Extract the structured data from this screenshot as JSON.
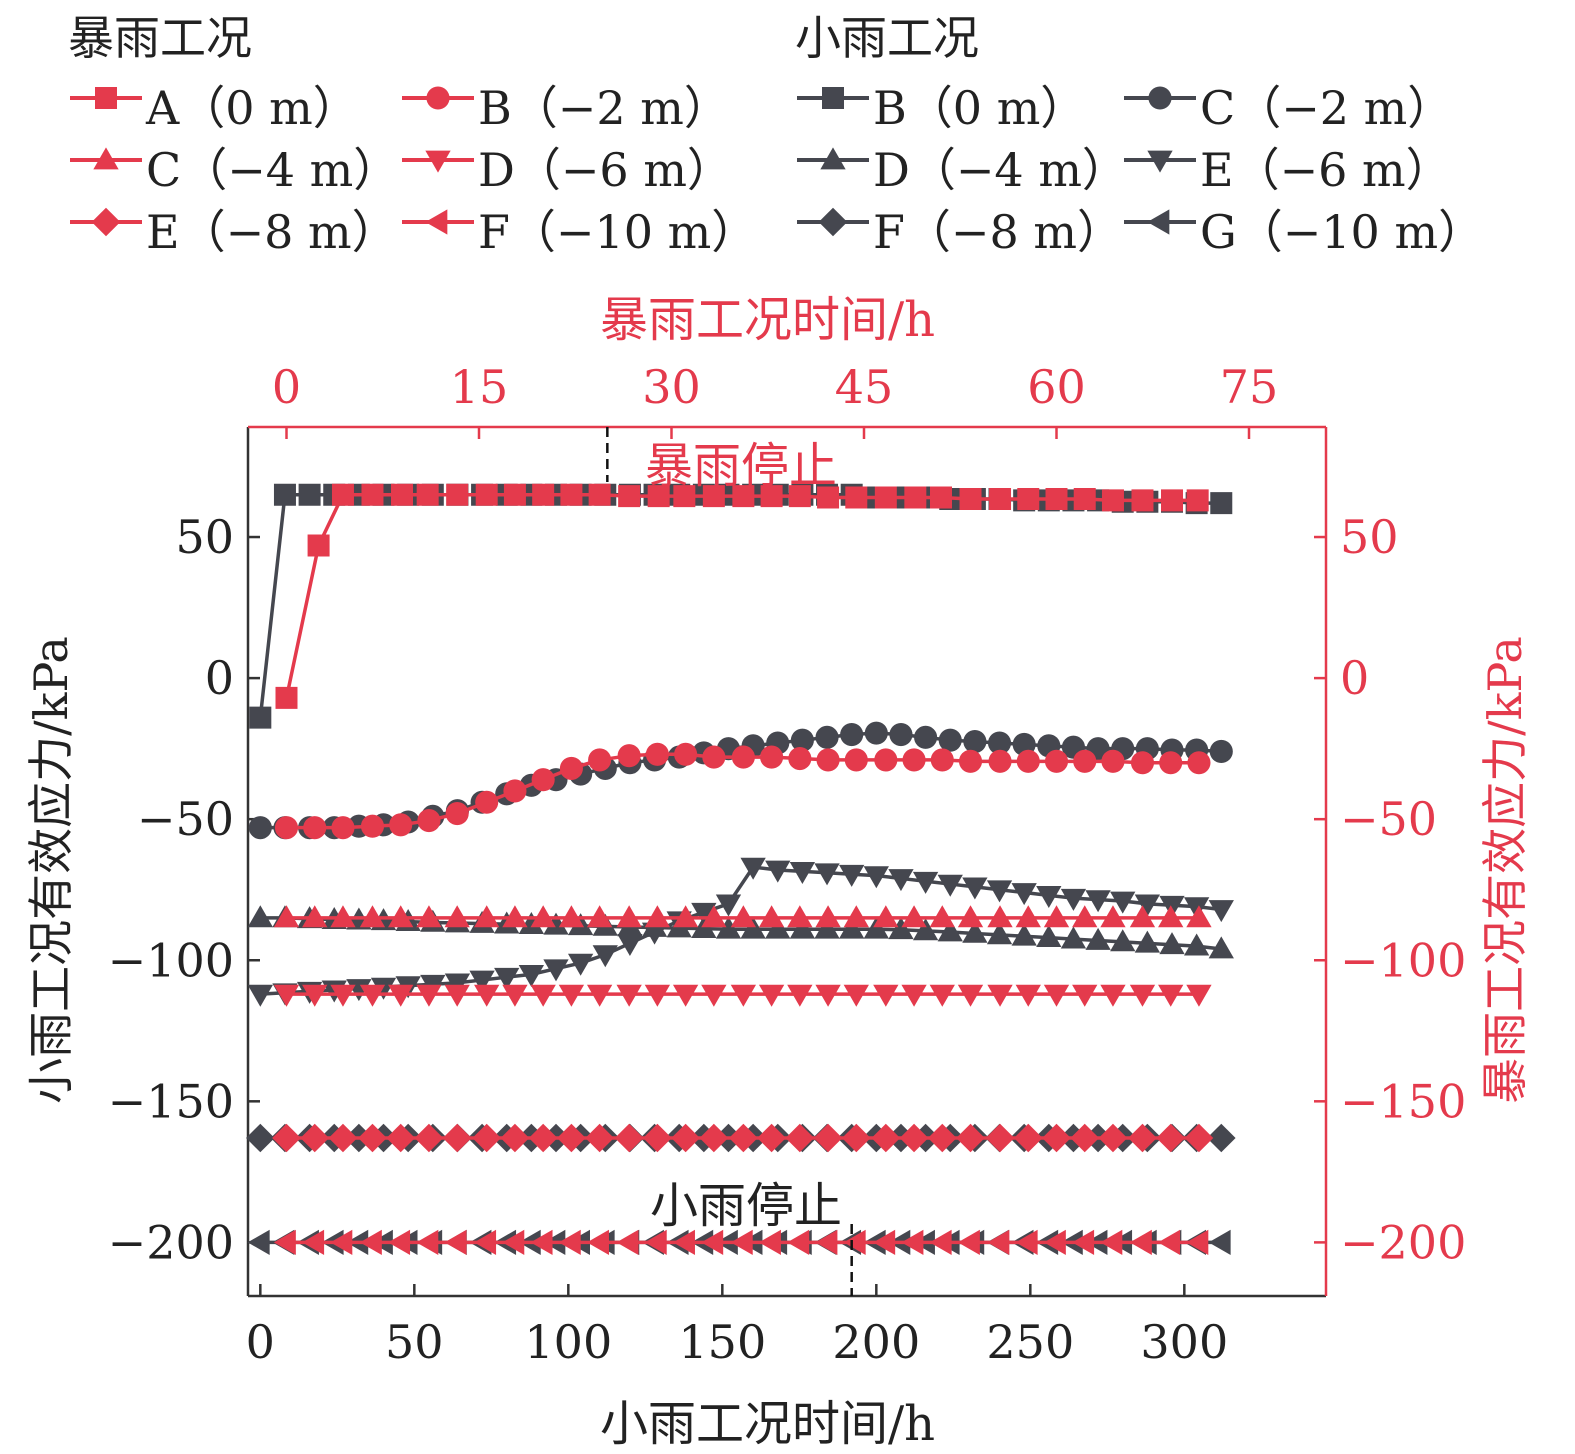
{
  "chart_data": {
    "type": "line",
    "legend": {
      "heavy_title": "暴雨工况",
      "light_title": "小雨工况",
      "heavy_entries": [
        "A（0 m）",
        "B（−2 m）",
        "C（−4 m）",
        "D（−6 m）",
        "E（−8 m）",
        "F（−10 m）"
      ],
      "light_entries": [
        "B（0 m）",
        "C（−2 m）",
        "D（−4 m）",
        "E（−6 m）",
        "F（−8 m）",
        "G（−10 m）"
      ]
    },
    "axes": {
      "x_bottom": {
        "label": "小雨工况时间/h",
        "range": [
          -4,
          346
        ],
        "ticks": [
          0,
          50,
          100,
          150,
          200,
          250,
          300
        ]
      },
      "x_top": {
        "label": "暴雨工况时间/h",
        "range": [
          -3,
          81
        ],
        "ticks": [
          0,
          15,
          30,
          45,
          60,
          75
        ]
      },
      "y_left": {
        "label": "小雨工况有效应力/kPa",
        "range": [
          -219,
          89
        ],
        "ticks": [
          50,
          0,
          -50,
          -100,
          -150,
          -200
        ]
      },
      "y_right": {
        "label": "暴雨工况有效应力/kPa",
        "range": [
          -219,
          89
        ],
        "ticks": [
          50,
          0,
          -50,
          -100,
          -150,
          -200
        ]
      }
    },
    "annotations": [
      {
        "text": "暴雨停止",
        "x_top": 25
      },
      {
        "text": "小雨停止",
        "x_bottom": 192
      }
    ],
    "colors": {
      "heavy": "#e43a4c",
      "light": "#45474f"
    },
    "series_heavy": [
      {
        "name": "A（0 m）",
        "marker": "square",
        "x": [
          0,
          2.5,
          4.4,
          6.7,
          9,
          11,
          13.3,
          15.6,
          17.8,
          20,
          22.2,
          24.4,
          26.7,
          29,
          31,
          33.3,
          35.6,
          37.8,
          40,
          42.2,
          44.4,
          46.7,
          49,
          51,
          53.3,
          55.6,
          57.8,
          60,
          62.2,
          64.4,
          66.7,
          69,
          71
        ],
        "y": [
          -7,
          47,
          65,
          65,
          65,
          65,
          65,
          65,
          65,
          65,
          65,
          65,
          64.5,
          64.5,
          64.5,
          64.5,
          64.5,
          64.5,
          64.5,
          64,
          64,
          64,
          64,
          64,
          63.5,
          63.5,
          63.5,
          63.5,
          63.5,
          63,
          63,
          63,
          63
        ]
      },
      {
        "name": "B（−2 m）",
        "marker": "circle",
        "x": [
          0,
          2.2,
          4.4,
          6.7,
          8.9,
          11.1,
          13.3,
          15.6,
          17.8,
          20,
          22.2,
          24.4,
          26.7,
          28.9,
          31.1,
          33.3,
          35.6,
          37.8,
          40,
          42.2,
          44.4,
          46.7,
          48.9,
          51.1,
          53.3,
          55.6,
          57.8,
          60,
          62.2,
          64.4,
          66.7,
          68.9,
          71.1
        ],
        "y": [
          -53,
          -53,
          -53,
          -52.5,
          -52,
          -50.5,
          -48,
          -44,
          -40,
          -36,
          -32,
          -29,
          -27.5,
          -27,
          -27,
          -28,
          -28,
          -28,
          -28.5,
          -29,
          -29,
          -29,
          -29,
          -29,
          -29.5,
          -29.5,
          -29.5,
          -29.5,
          -29.5,
          -29.5,
          -30,
          -30,
          -30
        ]
      },
      {
        "name": "C（−4 m）",
        "marker": "triangle-up",
        "x": [
          0,
          2.2,
          4.4,
          6.7,
          8.9,
          11.1,
          13.3,
          15.6,
          17.8,
          20,
          22.2,
          24.4,
          26.7,
          28.9,
          31.1,
          33.3,
          35.6,
          37.8,
          40,
          42.2,
          44.4,
          46.7,
          48.9,
          51.1,
          53.3,
          55.6,
          57.8,
          60,
          62.2,
          64.4,
          66.7,
          68.9,
          71.1
        ],
        "y": [
          -85,
          -85,
          -85,
          -85,
          -85,
          -85,
          -85,
          -85,
          -85,
          -85,
          -85,
          -85,
          -85,
          -85,
          -85,
          -85,
          -85,
          -85,
          -85,
          -85,
          -85,
          -85,
          -85,
          -85,
          -85,
          -85,
          -85,
          -85,
          -85,
          -85,
          -85,
          -85,
          -85
        ]
      },
      {
        "name": "D（−6 m）",
        "marker": "triangle-down",
        "x": [
          0,
          2.2,
          4.4,
          6.7,
          8.9,
          11.1,
          13.3,
          15.6,
          17.8,
          20,
          22.2,
          24.4,
          26.7,
          28.9,
          31.1,
          33.3,
          35.6,
          37.8,
          40,
          42.2,
          44.4,
          46.7,
          48.9,
          51.1,
          53.3,
          55.6,
          57.8,
          60,
          62.2,
          64.4,
          66.7,
          68.9,
          71.1
        ],
        "y": [
          -112,
          -112,
          -112,
          -112,
          -112,
          -112,
          -112,
          -112,
          -112,
          -112,
          -112,
          -112,
          -112,
          -112,
          -112,
          -112,
          -112,
          -112,
          -112,
          -112,
          -112,
          -112,
          -112,
          -112,
          -112,
          -112,
          -112,
          -112,
          -112,
          -112,
          -112,
          -112,
          -112
        ]
      },
      {
        "name": "E（−8 m）",
        "marker": "diamond",
        "x": [
          0,
          2.2,
          4.4,
          6.7,
          8.9,
          11.1,
          13.3,
          15.6,
          17.8,
          20,
          22.2,
          24.4,
          26.7,
          28.9,
          31.1,
          33.3,
          35.6,
          37.8,
          40,
          42.2,
          44.4,
          46.7,
          48.9,
          51.1,
          53.3,
          55.6,
          57.8,
          60,
          62.2,
          64.4,
          66.7,
          68.9,
          71.1
        ],
        "y": [
          -163,
          -163,
          -163,
          -163,
          -163,
          -163,
          -163,
          -163,
          -163,
          -163,
          -163,
          -163,
          -163,
          -163,
          -163,
          -163,
          -163,
          -163,
          -163,
          -163,
          -163,
          -163,
          -163,
          -163,
          -163,
          -163,
          -163,
          -163,
          -163,
          -163,
          -163,
          -163,
          -163
        ]
      },
      {
        "name": "F（−10 m）",
        "marker": "triangle-left",
        "x": [
          0,
          2.2,
          4.4,
          6.7,
          8.9,
          11.1,
          13.3,
          15.6,
          17.8,
          20,
          22.2,
          24.4,
          26.7,
          28.9,
          31.1,
          33.3,
          35.6,
          37.8,
          40,
          42.2,
          44.4,
          46.7,
          48.9,
          51.1,
          53.3,
          55.6,
          57.8,
          60,
          62.2,
          64.4,
          66.7,
          68.9,
          71.1
        ],
        "y": [
          -200,
          -200,
          -200,
          -200,
          -200,
          -200,
          -200,
          -200,
          -200,
          -200,
          -200,
          -200,
          -200,
          -200,
          -200,
          -200,
          -200,
          -200,
          -200,
          -200,
          -200,
          -200,
          -200,
          -200,
          -200,
          -200,
          -200,
          -200,
          -200,
          -200,
          -200,
          -200,
          -200
        ]
      }
    ],
    "series_light": [
      {
        "name": "B（0 m）",
        "marker": "square",
        "x": [
          0,
          8,
          16,
          24,
          32,
          40,
          48,
          56,
          64,
          72,
          80,
          88,
          96,
          104,
          112,
          120,
          128,
          136,
          144,
          152,
          160,
          168,
          176,
          184,
          192,
          200,
          208,
          216,
          224,
          232,
          240,
          248,
          256,
          264,
          272,
          280,
          288,
          296,
          304,
          312
        ],
        "y": [
          -14,
          65,
          65,
          65,
          65,
          65,
          65,
          65,
          65,
          65,
          65,
          65,
          65,
          65,
          65,
          65,
          65,
          65,
          65,
          65,
          65,
          65,
          65,
          65,
          65,
          64,
          64,
          64,
          63.5,
          63.5,
          63.5,
          63,
          63,
          63,
          63,
          62.5,
          62.5,
          62.5,
          62,
          62
        ]
      },
      {
        "name": "C（−2 m）",
        "marker": "circle",
        "x": [
          0,
          8,
          16,
          24,
          32,
          40,
          48,
          56,
          64,
          72,
          80,
          88,
          96,
          104,
          112,
          120,
          128,
          136,
          144,
          152,
          160,
          168,
          176,
          184,
          192,
          200,
          208,
          216,
          224,
          232,
          240,
          248,
          256,
          264,
          272,
          280,
          288,
          296,
          304,
          312
        ],
        "y": [
          -53,
          -53,
          -53,
          -53,
          -52.5,
          -52,
          -51,
          -49,
          -47,
          -44,
          -41,
          -38,
          -36,
          -34,
          -32,
          -30,
          -29,
          -28,
          -26.5,
          -25,
          -24,
          -23,
          -22,
          -21,
          -20,
          -19.5,
          -20,
          -21,
          -22,
          -22.5,
          -23,
          -23.5,
          -24,
          -24.5,
          -25,
          -25,
          -25,
          -25.5,
          -25.5,
          -26
        ]
      },
      {
        "name": "D（−4 m）",
        "marker": "triangle-up",
        "x": [
          0,
          8,
          16,
          24,
          32,
          40,
          48,
          56,
          64,
          72,
          80,
          88,
          96,
          104,
          112,
          120,
          128,
          136,
          144,
          152,
          160,
          168,
          176,
          184,
          192,
          200,
          208,
          216,
          224,
          232,
          240,
          248,
          256,
          264,
          272,
          280,
          288,
          296,
          304,
          312
        ],
        "y": [
          -85,
          -85,
          -85.3,
          -85.6,
          -85.8,
          -86,
          -86.3,
          -86.6,
          -86.8,
          -87,
          -87.2,
          -87.4,
          -87.6,
          -87.8,
          -88,
          -88.2,
          -88.4,
          -88.6,
          -88.8,
          -89,
          -89,
          -89,
          -89,
          -89,
          -89,
          -89,
          -89.2,
          -89.6,
          -90,
          -90.5,
          -91,
          -91.5,
          -92,
          -92.5,
          -93,
          -93.5,
          -94,
          -94.5,
          -95,
          -96
        ]
      },
      {
        "name": "E（−6 m）",
        "marker": "triangle-down",
        "x": [
          0,
          8,
          16,
          24,
          32,
          40,
          48,
          56,
          64,
          72,
          80,
          88,
          96,
          104,
          112,
          120,
          128,
          136,
          144,
          152,
          160,
          168,
          176,
          184,
          192,
          200,
          208,
          216,
          224,
          232,
          240,
          248,
          256,
          264,
          272,
          280,
          288,
          296,
          304,
          312
        ],
        "y": [
          -112,
          -111.5,
          -111,
          -110.5,
          -110,
          -109.5,
          -109,
          -108.5,
          -108,
          -107,
          -106,
          -105,
          -103,
          -101,
          -98,
          -94,
          -90,
          -86,
          -83,
          -80,
          -67,
          -68,
          -68.5,
          -69,
          -69.5,
          -70,
          -71,
          -72,
          -73,
          -74,
          -75,
          -76,
          -77,
          -78,
          -78.5,
          -79,
          -80,
          -80.5,
          -81,
          -82
        ]
      },
      {
        "name": "F（−8 m）",
        "marker": "diamond",
        "x": [
          0,
          8,
          16,
          24,
          32,
          40,
          48,
          56,
          64,
          72,
          80,
          88,
          96,
          104,
          112,
          120,
          128,
          136,
          144,
          152,
          160,
          168,
          176,
          184,
          192,
          200,
          208,
          216,
          224,
          232,
          240,
          248,
          256,
          264,
          272,
          280,
          288,
          296,
          304,
          312
        ],
        "y": [
          -163,
          -163,
          -163,
          -163,
          -163,
          -163,
          -163,
          -163,
          -163,
          -163,
          -163,
          -163,
          -163,
          -163,
          -163,
          -163,
          -163,
          -163,
          -163,
          -163,
          -163,
          -163,
          -163,
          -163,
          -163,
          -163,
          -163,
          -163,
          -163,
          -163,
          -163,
          -163,
          -163,
          -163,
          -163,
          -163,
          -163,
          -163,
          -163,
          -163
        ]
      },
      {
        "name": "G（−10 m）",
        "marker": "triangle-left",
        "x": [
          0,
          8,
          16,
          24,
          32,
          40,
          48,
          56,
          64,
          72,
          80,
          88,
          96,
          104,
          112,
          120,
          128,
          136,
          144,
          152,
          160,
          168,
          176,
          184,
          192,
          200,
          208,
          216,
          224,
          232,
          240,
          248,
          256,
          264,
          272,
          280,
          288,
          296,
          304,
          312
        ],
        "y": [
          -200,
          -200,
          -200,
          -200,
          -200,
          -200,
          -200,
          -200,
          -200,
          -200,
          -200,
          -200,
          -200,
          -200,
          -200,
          -200,
          -200,
          -200,
          -200,
          -200,
          -200,
          -200,
          -200,
          -200,
          -200,
          -200,
          -200,
          -200,
          -200,
          -200,
          -200,
          -200,
          -200,
          -200,
          -200,
          -200,
          -200,
          -200,
          -200,
          -200
        ]
      }
    ]
  }
}
